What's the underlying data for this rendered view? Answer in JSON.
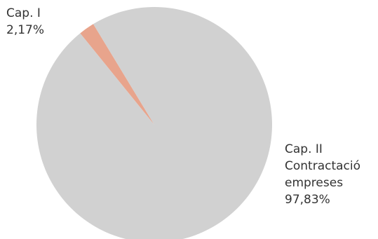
{
  "chart_data": {
    "type": "pie",
    "slices": [
      {
        "label_lines": [
          "Cap. I"
        ],
        "percent_text": "2,17%",
        "value": 2.17,
        "color": "#e8a48c"
      },
      {
        "label_lines": [
          "Cap. II",
          "Contractació",
          "empreses"
        ],
        "percent_text": "97,83%",
        "value": 97.83,
        "color": "#d1d1d1"
      }
    ],
    "start_angle_deg": -39
  }
}
